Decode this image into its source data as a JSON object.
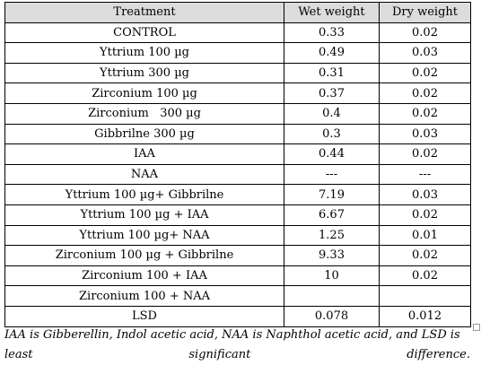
{
  "table": {
    "headers": [
      "Treatment",
      "Wet weight",
      "Dry weight"
    ],
    "rows": [
      [
        "CONTROL",
        "0.33",
        "0.02"
      ],
      [
        "Yttrium 100 µg",
        "0.49",
        "0.03"
      ],
      [
        "Yttrium 300 µg",
        "0.31",
        "0.02"
      ],
      [
        "Zirconium 100 µg",
        "0.37",
        "0.02"
      ],
      [
        "Zirconium   300 µg",
        "0.4",
        "0.02"
      ],
      [
        "Gibbrilne 300 µg",
        "0.3",
        "0.03"
      ],
      [
        "IAA",
        "0.44",
        "0.02"
      ],
      [
        "NAA",
        "---",
        "---"
      ],
      [
        "Yttrium 100 µg+ Gibbrilne",
        "7.19",
        "0.03"
      ],
      [
        "Yttrium 100 µg + IAA",
        "6.67",
        "0.02"
      ],
      [
        "Yttrium 100 µg+ NAA",
        "1.25",
        "0.01"
      ],
      [
        "Zirconium 100 µg + Gibbrilne",
        "9.33",
        "0.02"
      ],
      [
        "Zirconium 100 + IAA",
        "10",
        "0.02"
      ],
      [
        "Zirconium 100 + NAA",
        "",
        ""
      ],
      [
        "LSD",
        "0.078",
        "0.012"
      ]
    ]
  },
  "footnote": {
    "line1": "IAA is Gibberellin, Indol acetic acid, NAA is Naphthol acetic acid, and LSD is",
    "line2_words": [
      "least",
      "significant",
      "difference."
    ]
  },
  "colors": {
    "header_bg": "#dcdcdc",
    "border": "#000000"
  }
}
